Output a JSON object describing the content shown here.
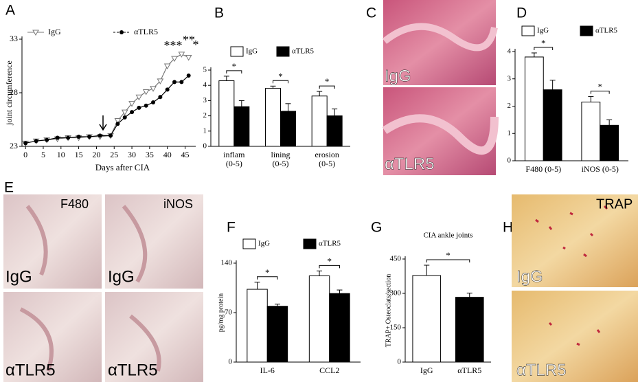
{
  "panels": [
    "A",
    "B",
    "C",
    "D",
    "E",
    "F",
    "G",
    "H"
  ],
  "image_labels": {
    "C": [
      "IgG",
      "αTLR5"
    ],
    "E": [
      "F480",
      "iNOS",
      "IgG",
      "IgG",
      "αTLR5",
      "αTLR5"
    ],
    "H": [
      "TRAP",
      "IgG",
      "αTLR5"
    ]
  },
  "chart_data": [
    {
      "type": "line",
      "xlabel": "Days after CIA",
      "ylabel": "joint circumference",
      "x": [
        0,
        3,
        6,
        9,
        12,
        15,
        18,
        21,
        24,
        26,
        28,
        30,
        32,
        34,
        36,
        38,
        40,
        42,
        44,
        46
      ],
      "series": [
        {
          "name": "IgG",
          "color": "#777777",
          "marker": "triangle",
          "values": [
            23.3,
            23.5,
            23.6,
            23.7,
            23.8,
            23.8,
            23.9,
            23.9,
            24.0,
            25.4,
            26.2,
            27.0,
            27.6,
            28.1,
            28.4,
            29.1,
            30.5,
            31.2,
            31.6,
            31.3
          ]
        },
        {
          "name": "αTLR5",
          "color": "#000000",
          "marker": "circle",
          "values": [
            23.3,
            23.5,
            23.6,
            23.8,
            23.8,
            23.9,
            23.9,
            24.0,
            24.0,
            25.1,
            25.7,
            26.2,
            26.6,
            26.8,
            27.1,
            27.6,
            28.3,
            29.0,
            29.0,
            29.6
          ]
        }
      ],
      "annotations": [
        "***",
        "**",
        "*"
      ],
      "xlim": [
        -1,
        48
      ],
      "xticks": [
        0,
        5,
        10,
        15,
        20,
        25,
        30,
        35,
        40,
        45
      ],
      "ylim": [
        23,
        33
      ],
      "yticks": [
        23,
        28,
        33
      ]
    },
    {
      "type": "bar",
      "categories": [
        [
          "inflam",
          "(0-5)"
        ],
        [
          "lining",
          "(0-5)"
        ],
        [
          "erosion",
          "(0-5)"
        ]
      ],
      "series": [
        {
          "name": "IgG",
          "color": "#ffffff",
          "values": [
            4.3,
            3.8,
            3.3
          ],
          "errors": [
            0.3,
            0.15,
            0.3
          ]
        },
        {
          "name": "αTLR5",
          "color": "#000000",
          "values": [
            2.6,
            2.3,
            2.0
          ],
          "errors": [
            0.4,
            0.5,
            0.45
          ]
        }
      ],
      "significance": [
        "*",
        "*",
        "*"
      ],
      "ylim": [
        0,
        5
      ],
      "yticks": [
        0,
        1,
        2,
        3,
        4,
        5
      ]
    },
    {
      "type": "bar",
      "categories": [
        [
          "F480 (0-5)"
        ],
        [
          "iNOS (0-5)"
        ]
      ],
      "series": [
        {
          "name": "IgG",
          "color": "#ffffff",
          "values": [
            3.8,
            2.15
          ],
          "errors": [
            0.15,
            0.2
          ]
        },
        {
          "name": "αTLR5",
          "color": "#000000",
          "values": [
            2.6,
            1.3
          ],
          "errors": [
            0.35,
            0.2
          ]
        }
      ],
      "significance": [
        "*",
        "*"
      ],
      "ylim": [
        0,
        4
      ],
      "yticks": [
        0,
        1,
        2,
        3,
        4
      ]
    },
    {
      "type": "bar",
      "ylabel": "pg/mg protein",
      "categories": [
        [
          "IL-6"
        ],
        [
          "CCL2"
        ]
      ],
      "series": [
        {
          "name": "IgG",
          "color": "#ffffff",
          "values": [
            103,
            122
          ],
          "errors": [
            10,
            7
          ]
        },
        {
          "name": "αTLR5",
          "color": "#000000",
          "values": [
            79,
            97
          ],
          "errors": [
            3,
            5
          ]
        }
      ],
      "significance": [
        "*",
        "*"
      ],
      "ylim": [
        0,
        140
      ],
      "yticks": [
        0,
        70,
        140
      ]
    },
    {
      "type": "bar",
      "title": "CIA ankle joints",
      "ylabel": "TRAP+ Osteoclats/section",
      "categories": [
        [
          "IgG"
        ],
        [
          "αTLR5"
        ]
      ],
      "series": [
        {
          "colors": [
            "#ffffff",
            "#000000"
          ],
          "values": [
            378,
            283
          ],
          "errors": [
            45,
            18
          ]
        }
      ],
      "significance": [
        "*"
      ],
      "ylim": [
        0,
        450
      ],
      "yticks": [
        0,
        150,
        300,
        450
      ]
    }
  ]
}
